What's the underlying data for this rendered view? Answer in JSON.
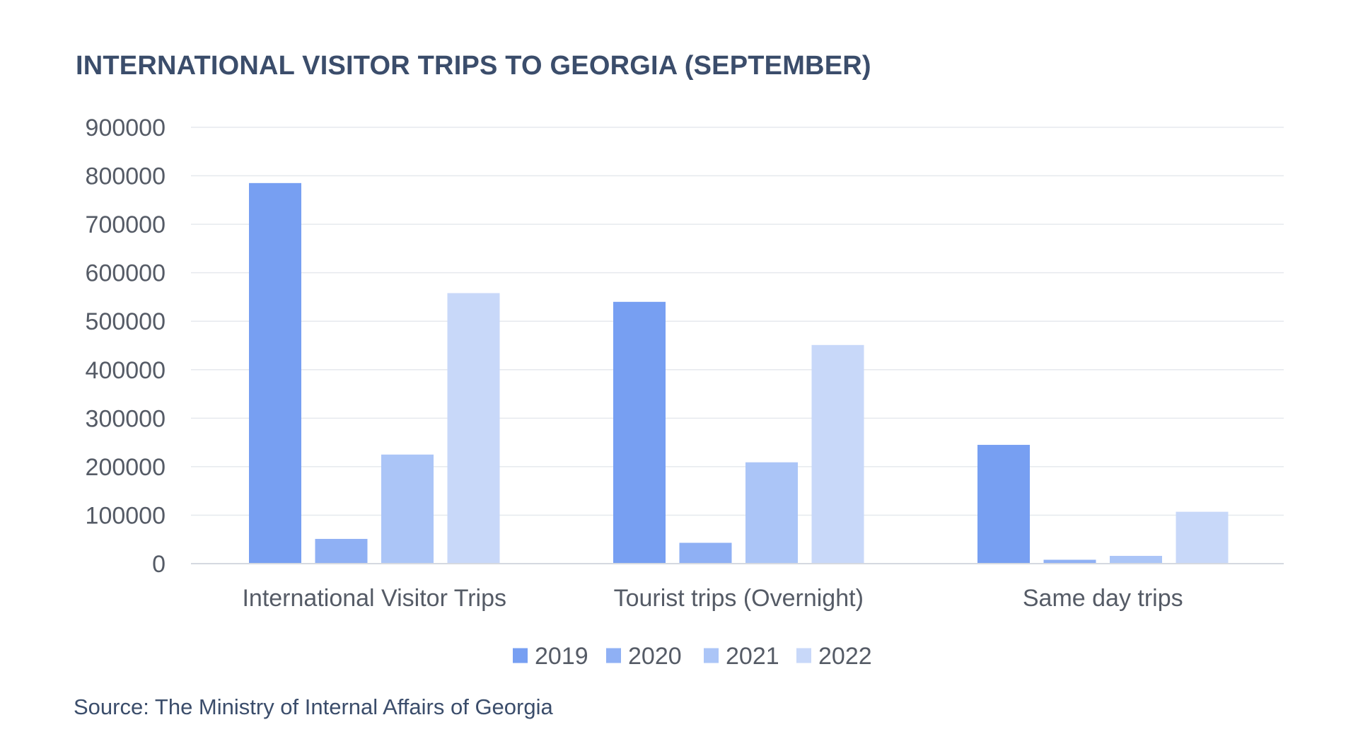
{
  "chart_data": {
    "type": "bar",
    "title": "INTERNATIONAL VISITOR TRIPS TO GEORGIA (SEPTEMBER)",
    "xlabel": "",
    "ylabel": "",
    "ylim": [
      0,
      900000
    ],
    "yticks": [
      0,
      100000,
      200000,
      300000,
      400000,
      500000,
      600000,
      700000,
      800000,
      900000
    ],
    "grid": true,
    "legend_position": "bottom-center",
    "categories": [
      "International Visitor Trips",
      "Tourist trips (Overnight)",
      "Same day trips"
    ],
    "series": [
      {
        "name": "2019",
        "color": "#779ff2",
        "values": [
          785000,
          540000,
          245000
        ]
      },
      {
        "name": "2020",
        "color": "#8fb0f4",
        "values": [
          51000,
          43000,
          8000
        ]
      },
      {
        "name": "2021",
        "color": "#abc5f7",
        "values": [
          225000,
          209000,
          16000
        ]
      },
      {
        "name": "2022",
        "color": "#c8d8f9",
        "values": [
          558000,
          451000,
          107000
        ]
      }
    ]
  },
  "source": "Source: The Ministry of Internal Affairs of Georgia",
  "colors": {
    "title": "#3b4d6b",
    "axis_text": "#555b66",
    "grid": "#e6e9ee",
    "baseline": "#d5d9e0"
  }
}
